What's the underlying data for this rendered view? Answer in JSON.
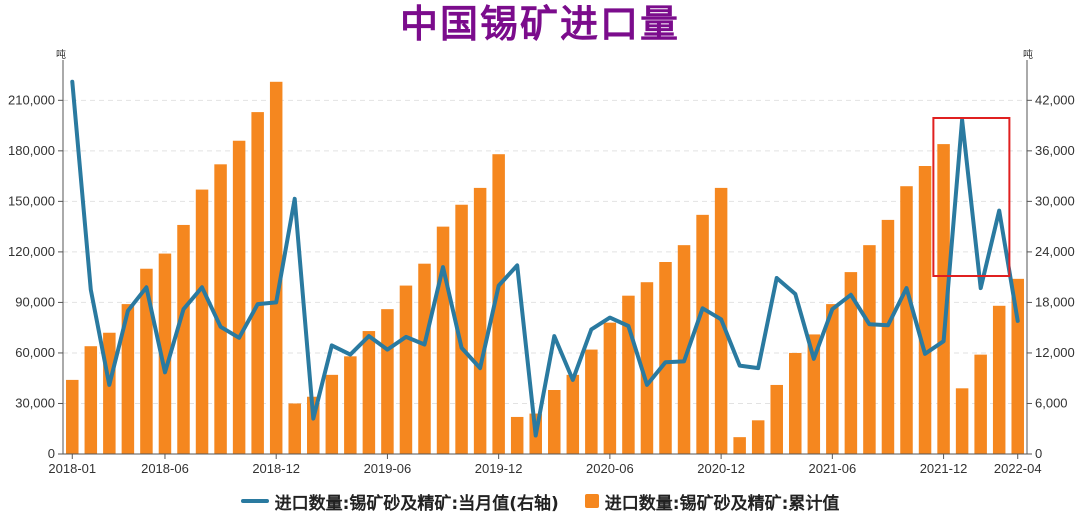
{
  "chart_data": {
    "type": "bar+line",
    "title": "中国锡矿进口量",
    "left_axis": {
      "unit": "吨",
      "min": 0,
      "max": 228000,
      "ticks": [
        0,
        30000,
        60000,
        90000,
        120000,
        150000,
        180000,
        210000
      ],
      "tick_labels": [
        "0",
        "30,000",
        "60,000",
        "90,000",
        "120,000",
        "150,000",
        "180,000",
        "210,000"
      ]
    },
    "right_axis": {
      "unit": "吨",
      "min": 0,
      "max": 45600,
      "ticks": [
        0,
        6000,
        12000,
        18000,
        24000,
        30000,
        36000,
        42000
      ],
      "tick_labels": [
        "0",
        "6,000",
        "12,000",
        "18,000",
        "24,000",
        "30,000",
        "36,000",
        "42,000"
      ]
    },
    "x_tick_labels": [
      {
        "index": 0,
        "label": "2018-01"
      },
      {
        "index": 5,
        "label": "2018-06"
      },
      {
        "index": 11,
        "label": "2018-12"
      },
      {
        "index": 17,
        "label": "2019-06"
      },
      {
        "index": 23,
        "label": "2019-12"
      },
      {
        "index": 29,
        "label": "2020-06"
      },
      {
        "index": 35,
        "label": "2020-12"
      },
      {
        "index": 41,
        "label": "2021-06"
      },
      {
        "index": 47,
        "label": "2021-12"
      },
      {
        "index": 51,
        "label": "2022-04"
      }
    ],
    "x": [
      "2018-01",
      "2018-02",
      "2018-03",
      "2018-04",
      "2018-05",
      "2018-06",
      "2018-07",
      "2018-08",
      "2018-09",
      "2018-10",
      "2018-11",
      "2018-12",
      "2019-01",
      "2019-02",
      "2019-03",
      "2019-04",
      "2019-05",
      "2019-06",
      "2019-07",
      "2019-08",
      "2019-09",
      "2019-10",
      "2019-11",
      "2019-12",
      "2020-01",
      "2020-02",
      "2020-03",
      "2020-04",
      "2020-05",
      "2020-06",
      "2020-07",
      "2020-08",
      "2020-09",
      "2020-10",
      "2020-11",
      "2020-12",
      "2021-01",
      "2021-02",
      "2021-03",
      "2021-04",
      "2021-05",
      "2021-06",
      "2021-07",
      "2021-08",
      "2021-09",
      "2021-10",
      "2021-11",
      "2021-12",
      "2022-01",
      "2022-02",
      "2022-03",
      "2022-04"
    ],
    "series": [
      {
        "name": "进口数量:锡矿砂及精矿:累计值",
        "type": "bar",
        "axis": "left",
        "color": "#f5871f",
        "values": [
          44000,
          64000,
          72000,
          89000,
          110000,
          119000,
          136000,
          157000,
          172000,
          186000,
          203000,
          221000,
          30000,
          34000,
          47000,
          58000,
          73000,
          86000,
          100000,
          113000,
          135000,
          148000,
          158000,
          178000,
          22000,
          24000,
          38000,
          47000,
          62000,
          78000,
          94000,
          102000,
          114000,
          124000,
          142000,
          158000,
          10000,
          20000,
          41000,
          60000,
          71000,
          89000,
          108000,
          124000,
          139000,
          159000,
          171000,
          184000,
          39000,
          59000,
          88000,
          104000
        ]
      },
      {
        "name": "进口数量:锡矿砂及精矿:当月值(右轴)",
        "type": "line",
        "axis": "right",
        "color": "#2a7aa0",
        "values": [
          44200,
          19500,
          8200,
          17000,
          19800,
          9700,
          17200,
          19800,
          15100,
          13800,
          17800,
          18000,
          30300,
          4200,
          12900,
          11800,
          14000,
          12400,
          13900,
          13000,
          22200,
          12600,
          10200,
          20000,
          22400,
          2200,
          14000,
          8800,
          14800,
          16200,
          15200,
          8200,
          10900,
          11000,
          17300,
          16000,
          10500,
          10200,
          20900,
          19000,
          11300,
          17200,
          18900,
          15400,
          15300,
          19700,
          11900,
          13400,
          39700,
          19700,
          28900,
          15800
        ]
      }
    ],
    "annotation": "red rectangle highlighting 2021-12 to 2022-03",
    "legend_position": "bottom-center",
    "grid": true
  }
}
